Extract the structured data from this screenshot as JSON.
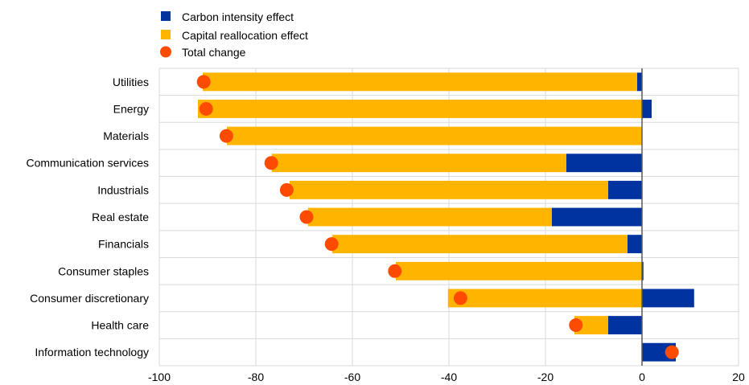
{
  "colors": {
    "carbon_intensity": "#0033a0",
    "capital_reallocation": "#ffb400",
    "total_change": "#ff4b00",
    "zero_line": "#595959"
  },
  "legend": {
    "carbon_label": "Carbon intensity effect",
    "capital_label": "Capital reallocation effect",
    "total_label": "Total change"
  },
  "chart_data": {
    "type": "bar",
    "orientation": "horizontal",
    "stacked": true,
    "title": "",
    "xlabel": "",
    "ylabel": "",
    "xlim": [
      -100,
      20
    ],
    "xticks": [
      -100,
      -80,
      -60,
      -40,
      -20,
      0,
      20
    ],
    "grid": "vertical",
    "legend_position": "top-left",
    "categories": [
      "Utilities",
      "Energy",
      "Materials",
      "Communication services",
      "Industrials",
      "Real estate",
      "Financials",
      "Consumer staples",
      "Consumer discretionary",
      "Health care",
      "Information technology"
    ],
    "series": [
      {
        "name": "Carbon intensity effect",
        "kind": "bar",
        "values": [
          -1,
          2,
          0,
          -15.7,
          -7,
          -18.7,
          -3,
          0.3,
          10.8,
          -7,
          7
        ]
      },
      {
        "name": "Capital reallocation effect",
        "kind": "bar",
        "values": [
          -90,
          -92,
          -86,
          -61,
          -66,
          -50.5,
          -61.2,
          -51,
          -40.2,
          -7,
          0
        ]
      },
      {
        "name": "Total change",
        "kind": "marker",
        "values": [
          -90.8,
          -90.3,
          -86.1,
          -76.8,
          -73.6,
          -69.5,
          -64.3,
          -51.2,
          -37.6,
          -13.7,
          6.2
        ]
      }
    ]
  }
}
